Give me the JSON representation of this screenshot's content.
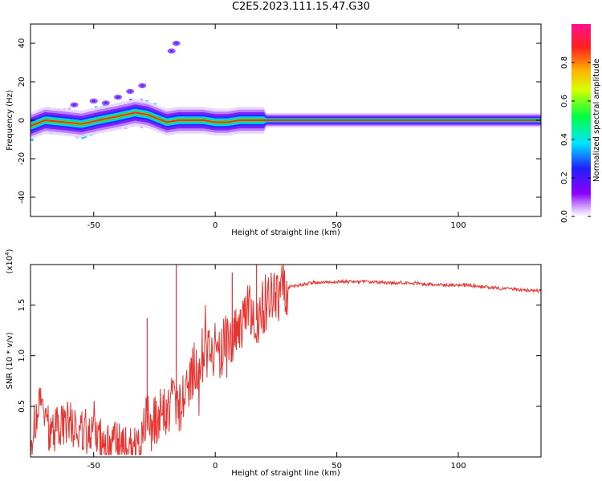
{
  "title": "C2E5.2023.111.15.47.G30",
  "colors": {
    "snr_line": "#e8332f",
    "spectrogram_ridge": "#e8332f",
    "frame": "#000000"
  },
  "chart_data": [
    {
      "type": "heatmap",
      "xlabel": "Height of straight line (km)",
      "ylabel": "Frequency (Hz)",
      "xlim": [
        -76,
        134
      ],
      "ylim": [
        -50,
        50
      ],
      "xticks": [
        -50,
        0,
        50,
        100
      ],
      "yticks": [
        40,
        20,
        0,
        -20,
        -40
      ],
      "xtick_labels": [
        "-50",
        "0",
        "50",
        "100"
      ],
      "ytick_labels": [
        "40",
        "20",
        "0",
        "-20",
        "-40"
      ],
      "colorbar": {
        "label": "Normalized spectral amplitude",
        "range": [
          0,
          1
        ],
        "ticks": [
          0.0,
          0.2,
          0.4,
          0.6,
          0.8
        ],
        "tick_labels": [
          "0.0",
          "0.2",
          "0.4",
          "0.6",
          "0.8"
        ],
        "colormap": "rainbow (violet-blue-cyan-green-yellow-red)"
      },
      "ridge": {
        "description": "dominant frequency track of the spectrogram",
        "x": [
          -76,
          -70,
          -62,
          -55,
          -48,
          -40,
          -33,
          -28,
          -24,
          -20,
          -15,
          -10,
          -5,
          0,
          5,
          10,
          15,
          20,
          40,
          60,
          80,
          100,
          120,
          134
        ],
        "y": [
          -3,
          0,
          -1,
          -2,
          0,
          2,
          4,
          3,
          1,
          -1,
          0,
          0,
          0,
          -1,
          -1,
          0,
          0,
          0,
          0,
          0,
          0,
          0,
          0,
          0
        ]
      },
      "scattered_features": {
        "x": [
          -58,
          -50,
          -45,
          -40,
          -35,
          -30,
          -18,
          -16
        ],
        "y": [
          8,
          10,
          9,
          12,
          15,
          18,
          36,
          40
        ]
      },
      "grid": false
    },
    {
      "type": "line",
      "xlabel": "Height of straight line (km)",
      "ylabel": "SNR (10 * v/v)",
      "y_multiplier_label": "(x10",
      "y_multiplier_exponent": "4",
      "y_multiplier_close": ")",
      "xlim": [
        -76,
        134
      ],
      "ylim": [
        0,
        1.9
      ],
      "xticks": [
        -50,
        0,
        50,
        100
      ],
      "yticks": [
        0.5,
        1.0,
        1.5
      ],
      "xtick_labels": [
        "-50",
        "0",
        "50",
        "100"
      ],
      "ytick_labels": [
        "0.5",
        "1.0",
        "1.5"
      ],
      "series": [
        {
          "x": [
            -76,
            -72,
            -68,
            -64,
            -60,
            -56,
            -52,
            -48,
            -44,
            -40,
            -36,
            -32,
            -30,
            -28,
            -26,
            -24,
            -22,
            -20,
            -18,
            -16,
            -14,
            -12,
            -10,
            -8,
            -6,
            -4,
            -2,
            0,
            2,
            4,
            6,
            8,
            10,
            12,
            14,
            16,
            18,
            20,
            22,
            24,
            26,
            28,
            30,
            35,
            40,
            50,
            60,
            70,
            80,
            85,
            90,
            100,
            110,
            115,
            120,
            125,
            134
          ],
          "values": [
            0.15,
            0.55,
            0.25,
            0.3,
            0.35,
            0.25,
            0.2,
            0.18,
            0.15,
            0.12,
            0.1,
            0.1,
            0.15,
            0.45,
            0.3,
            0.35,
            0.5,
            0.4,
            0.6,
            0.55,
            0.5,
            0.6,
            0.8,
            0.95,
            0.9,
            1.0,
            1.1,
            1.05,
            1.0,
            1.15,
            1.05,
            1.2,
            1.3,
            1.35,
            1.45,
            1.3,
            1.4,
            1.5,
            1.55,
            1.6,
            1.62,
            1.65,
            1.68,
            1.7,
            1.72,
            1.73,
            1.73,
            1.72,
            1.72,
            1.71,
            1.7,
            1.7,
            1.68,
            1.67,
            1.66,
            1.65,
            1.64
          ]
        }
      ],
      "annotations": [
        {
          "x": -28,
          "y": 1.37
        },
        {
          "x": -16,
          "y": 1.9
        },
        {
          "x": 7,
          "y": 1.82
        },
        {
          "x": 17,
          "y": 1.9
        }
      ],
      "grid": false
    }
  ]
}
